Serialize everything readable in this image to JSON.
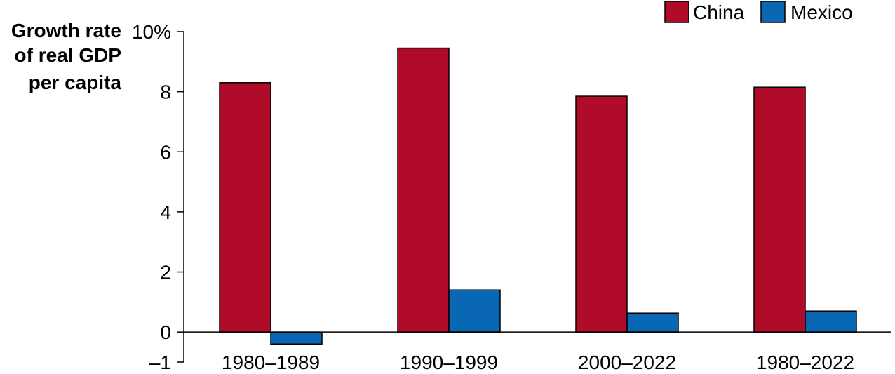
{
  "colors": {
    "china": "#b00c2a",
    "mexico": "#0a67b3",
    "axis": "#000000"
  },
  "chart_data": {
    "type": "bar",
    "ylabel_lines": [
      "Growth rate",
      "of real GDP",
      "per capita"
    ],
    "categories": [
      "1980–1989",
      "1990–1999",
      "2000–2022",
      "1980–2022"
    ],
    "series": [
      {
        "name": "China",
        "values": [
          8.3,
          9.45,
          7.85,
          8.15
        ]
      },
      {
        "name": "Mexico",
        "values": [
          -0.4,
          1.4,
          0.63,
          0.7
        ]
      }
    ],
    "ylim": [
      -1,
      10
    ],
    "yticks": [
      {
        "value": 10,
        "label": "10%"
      },
      {
        "value": 8,
        "label": "8"
      },
      {
        "value": 6,
        "label": "6"
      },
      {
        "value": 4,
        "label": "4"
      },
      {
        "value": 2,
        "label": "2"
      },
      {
        "value": 0,
        "label": "0"
      },
      {
        "value": -1,
        "label": "–1"
      }
    ],
    "legend": [
      "China",
      "Mexico"
    ],
    "legend_position": "top-right",
    "grid": false
  }
}
